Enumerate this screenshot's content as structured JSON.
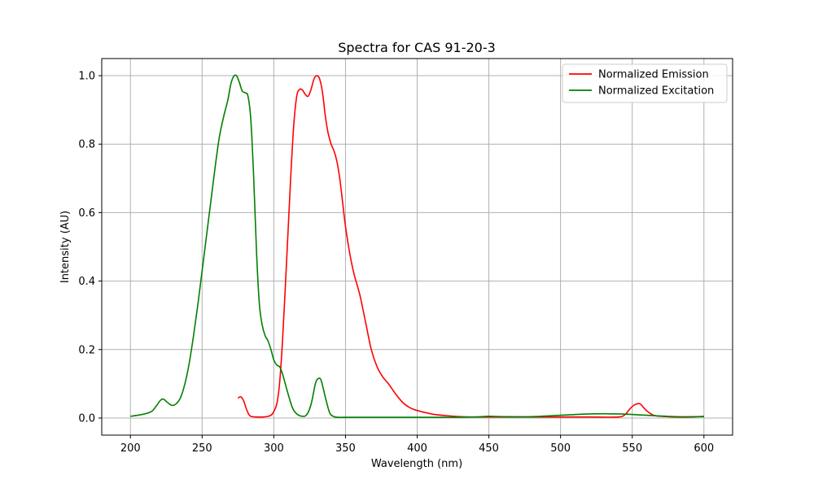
{
  "chart_data": {
    "type": "line",
    "title": "Spectra for CAS 91-20-3",
    "xlabel": "Wavelength (nm)",
    "ylabel": "Intensity (AU)",
    "xlim": [
      180,
      620
    ],
    "ylim": [
      -0.05,
      1.05
    ],
    "xticks": [
      200,
      250,
      300,
      350,
      400,
      450,
      500,
      550,
      600
    ],
    "yticks": [
      0.0,
      0.2,
      0.4,
      0.6,
      0.8,
      1.0
    ],
    "xtick_labels": [
      "200",
      "250",
      "300",
      "350",
      "400",
      "450",
      "500",
      "550",
      "600"
    ],
    "ytick_labels": [
      "0.0",
      "0.2",
      "0.4",
      "0.6",
      "0.8",
      "1.0"
    ],
    "grid": true,
    "legend": "top-right",
    "series": [
      {
        "name": "Normalized Emission",
        "color": "#ff0000",
        "x": [
          275,
          277,
          279,
          281,
          283,
          285,
          288,
          292,
          296,
          299,
          302,
          304,
          306,
          308,
          310,
          312,
          314,
          316,
          318,
          320,
          322,
          324,
          326,
          328,
          330,
          332,
          334,
          336,
          338,
          340,
          342,
          344,
          346,
          348,
          350,
          353,
          356,
          360,
          364,
          368,
          372,
          376,
          380,
          385,
          390,
          395,
          400,
          410,
          420,
          430,
          440,
          450,
          460,
          480,
          500,
          520,
          540,
          545,
          548,
          551,
          554,
          556,
          558,
          561,
          565,
          570,
          580,
          590,
          600
        ],
        "y": [
          0.058,
          0.062,
          0.05,
          0.025,
          0.008,
          0.004,
          0.003,
          0.003,
          0.005,
          0.012,
          0.04,
          0.1,
          0.22,
          0.38,
          0.55,
          0.72,
          0.86,
          0.94,
          0.96,
          0.958,
          0.945,
          0.94,
          0.96,
          0.99,
          1.0,
          0.99,
          0.95,
          0.88,
          0.83,
          0.8,
          0.78,
          0.75,
          0.7,
          0.63,
          0.56,
          0.48,
          0.42,
          0.36,
          0.28,
          0.2,
          0.15,
          0.12,
          0.1,
          0.07,
          0.045,
          0.03,
          0.022,
          0.012,
          0.007,
          0.004,
          0.003,
          0.003,
          0.003,
          0.003,
          0.003,
          0.003,
          0.003,
          0.01,
          0.025,
          0.037,
          0.042,
          0.04,
          0.03,
          0.018,
          0.008,
          0.005,
          0.003,
          0.003,
          0.005
        ]
      },
      {
        "name": "Normalized Excitation",
        "color": "#008000",
        "x": [
          200,
          205,
          210,
          215,
          218,
          221,
          223,
          226,
          229,
          232,
          235,
          238,
          241,
          244,
          247,
          250,
          253,
          256,
          259,
          262,
          265,
          268,
          270,
          272,
          274,
          276,
          278,
          280,
          282,
          284,
          286,
          288,
          290,
          292,
          294,
          296,
          298,
          300,
          302,
          304,
          306,
          308,
          310,
          313,
          316,
          320,
          323,
          326,
          329,
          331,
          333,
          336,
          339,
          342,
          345,
          350,
          360,
          380,
          400,
          420,
          440,
          450,
          460,
          480,
          500,
          520,
          540,
          560,
          580,
          600
        ],
        "y": [
          0.005,
          0.008,
          0.012,
          0.02,
          0.035,
          0.052,
          0.055,
          0.045,
          0.037,
          0.042,
          0.06,
          0.1,
          0.16,
          0.24,
          0.33,
          0.43,
          0.53,
          0.63,
          0.73,
          0.82,
          0.88,
          0.93,
          0.975,
          0.998,
          1.0,
          0.98,
          0.955,
          0.95,
          0.94,
          0.87,
          0.7,
          0.48,
          0.33,
          0.27,
          0.24,
          0.225,
          0.2,
          0.17,
          0.155,
          0.15,
          0.13,
          0.1,
          0.07,
          0.03,
          0.012,
          0.005,
          0.01,
          0.04,
          0.1,
          0.115,
          0.11,
          0.06,
          0.015,
          0.004,
          0.002,
          0.002,
          0.002,
          0.002,
          0.002,
          0.002,
          0.003,
          0.005,
          0.004,
          0.004,
          0.008,
          0.012,
          0.012,
          0.008,
          0.004,
          0.004
        ]
      }
    ]
  }
}
